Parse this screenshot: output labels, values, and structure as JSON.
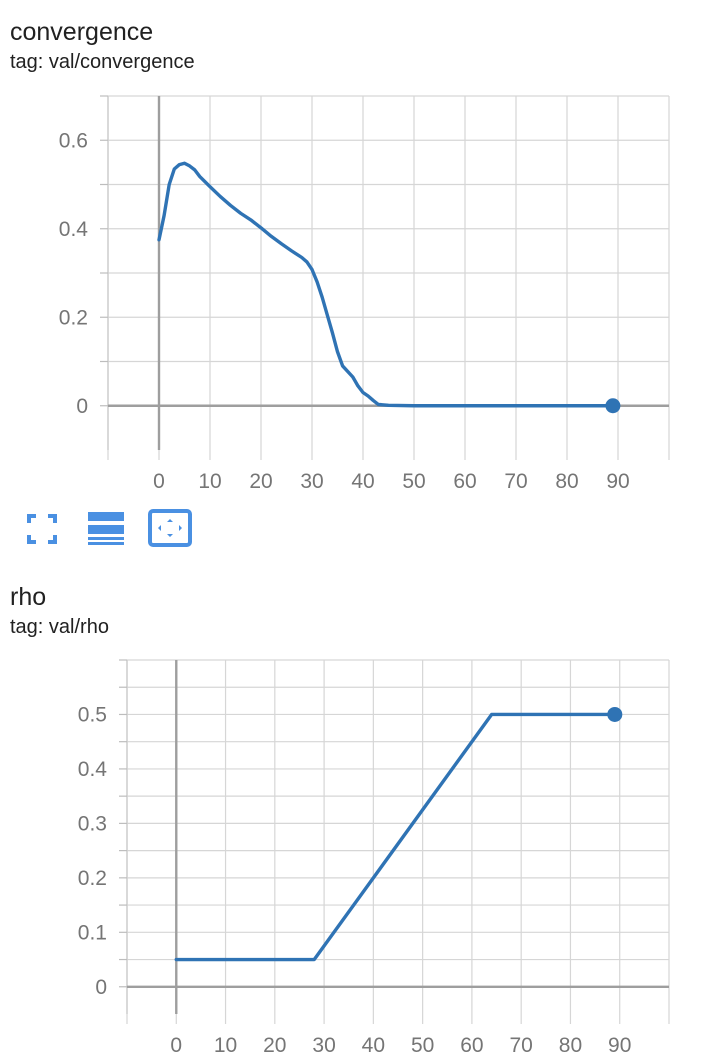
{
  "charts": [
    {
      "title": "convergence",
      "tag": "tag: val/convergence"
    },
    {
      "title": "rho",
      "tag": "tag: val/rho"
    }
  ],
  "toolbar": {
    "icons": [
      "fullscreen-icon",
      "toggle-log-scale-icon",
      "fit-domain-icon"
    ],
    "accent_color": "#4a90e2"
  },
  "chart_data": [
    {
      "type": "line",
      "title": "",
      "xlabel": "",
      "ylabel": "",
      "xlim": [
        -10,
        100
      ],
      "ylim": [
        -0.1,
        0.7
      ],
      "x_ticks": [
        "0",
        "10",
        "20",
        "30",
        "40",
        "50",
        "60",
        "70",
        "80",
        "90"
      ],
      "y_ticks": [
        "0",
        "0.2",
        "0.4",
        "0.6"
      ],
      "grid": true,
      "line_color": "#2f73b4",
      "series": [
        {
          "x": [
            0,
            1,
            2,
            3,
            4,
            5,
            6,
            7,
            8,
            10,
            12,
            14,
            16,
            18,
            20,
            22,
            24,
            26,
            28,
            29,
            30,
            31,
            32,
            33,
            34,
            35,
            36,
            38,
            39,
            40,
            41,
            42,
            43,
            45,
            50,
            55,
            60,
            65,
            70,
            75,
            80,
            85,
            89
          ],
          "y": [
            0.375,
            0.43,
            0.5,
            0.535,
            0.545,
            0.548,
            0.542,
            0.533,
            0.518,
            0.495,
            0.473,
            0.453,
            0.435,
            0.42,
            0.402,
            0.383,
            0.366,
            0.35,
            0.335,
            0.325,
            0.308,
            0.28,
            0.245,
            0.205,
            0.165,
            0.122,
            0.09,
            0.065,
            0.045,
            0.03,
            0.022,
            0.012,
            0.003,
            0.001,
            0.0,
            0.0,
            0.0,
            0.0,
            0.0,
            0.0,
            0.0,
            0.0,
            0.0
          ]
        }
      ],
      "last_point": {
        "x": 89,
        "y": 0.0
      }
    },
    {
      "type": "line",
      "title": "",
      "xlabel": "",
      "ylabel": "",
      "xlim": [
        -10,
        100
      ],
      "ylim": [
        -0.05,
        0.6
      ],
      "x_ticks": [
        "0",
        "10",
        "20",
        "30",
        "40",
        "50",
        "60",
        "70",
        "80",
        "90"
      ],
      "y_ticks": [
        "0",
        "0.1",
        "0.2",
        "0.3",
        "0.4",
        "0.5"
      ],
      "grid": true,
      "line_color": "#2f73b4",
      "series": [
        {
          "x": [
            0,
            28,
            64,
            89
          ],
          "y": [
            0.05,
            0.05,
            0.5,
            0.5
          ]
        }
      ],
      "last_point": {
        "x": 89,
        "y": 0.5
      }
    }
  ]
}
